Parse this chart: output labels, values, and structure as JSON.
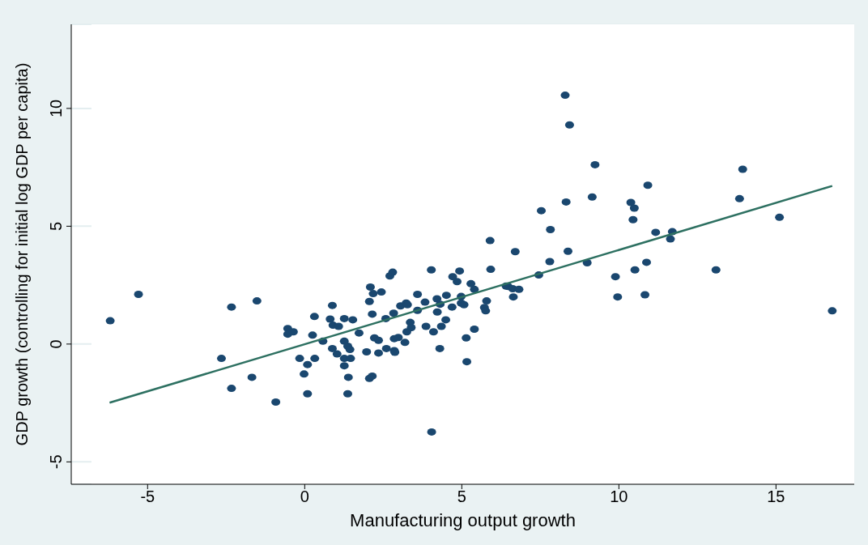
{
  "chart_data": {
    "type": "scatter",
    "xlabel": "Manufacturing output growth",
    "ylabel": "GDP growth (controlling for initial log GDP per capita)",
    "xlim": [
      -7.43,
      17.49
    ],
    "ylim": [
      -5.95,
      13.57
    ],
    "xticks": [
      -5,
      0,
      5,
      10,
      15
    ],
    "yticks": [
      -5,
      0,
      5,
      10
    ],
    "grid": "y",
    "legend": false,
    "series": [
      {
        "color": "#1a476f",
        "marker": "circle",
        "x": [
          -6.19,
          -5.29,
          -2.33,
          -1.52,
          -2.65,
          -2.33,
          -1.68,
          -0.92,
          -0.54,
          -0.54,
          -0.36,
          -0.16,
          -0.02,
          0.09,
          0.09,
          0.31,
          0.25,
          0.32,
          0.58,
          0.81,
          0.88,
          0.9,
          0.88,
          1.03,
          1.08,
          1.26,
          1.26,
          1.26,
          1.26,
          1.37,
          1.44,
          1.46,
          1.39,
          1.37,
          1.53,
          1.73,
          1.97,
          2.06,
          2.09,
          2.18,
          2.15,
          2.22,
          2.35,
          2.35,
          2.06,
          2.15,
          2.44,
          2.58,
          2.6,
          2.71,
          2.8,
          2.83,
          2.85,
          2.85,
          2.87,
          2.98,
          3.05,
          3.19,
          3.23,
          3.27,
          3.25,
          3.36,
          3.39,
          3.59,
          3.59,
          3.83,
          3.86,
          4.03,
          4.1,
          4.21,
          4.22,
          4.31,
          4.35,
          4.3,
          4.04,
          4.49,
          4.51,
          4.69,
          4.71,
          4.85,
          4.93,
          4.98,
          4.98,
          5.07,
          5.14,
          5.16,
          5.29,
          5.4,
          5.4,
          5.72,
          5.76,
          5.79,
          5.9,
          5.92,
          6.41,
          6.48,
          6.62,
          6.64,
          6.7,
          6.82,
          7.45,
          7.53,
          7.82,
          7.8,
          8.29,
          8.43,
          8.32,
          8.38,
          8.99,
          9.15,
          9.24,
          9.89,
          9.96,
          10.38,
          10.49,
          10.45,
          10.51,
          10.92,
          10.88,
          10.83,
          11.17,
          11.64,
          11.7,
          13.09,
          13.84,
          13.94,
          15.11,
          16.79
        ],
        "values": [
          0.99,
          2.11,
          1.57,
          1.83,
          -0.61,
          -1.88,
          -1.41,
          -2.46,
          0.66,
          0.42,
          0.52,
          -0.61,
          -1.27,
          -0.87,
          -2.11,
          1.17,
          0.38,
          -0.61,
          0.12,
          1.06,
          1.64,
          0.8,
          -0.19,
          -0.42,
          0.75,
          1.08,
          0.12,
          -0.61,
          -0.92,
          -0.09,
          -0.23,
          -0.61,
          -1.41,
          -2.11,
          1.03,
          0.47,
          -0.33,
          1.81,
          2.42,
          2.14,
          1.27,
          0.26,
          0.16,
          -0.38,
          -1.46,
          -1.36,
          2.21,
          1.08,
          -0.19,
          2.89,
          3.05,
          1.31,
          0.23,
          -0.28,
          -0.35,
          0.28,
          1.62,
          0.07,
          1.74,
          1.67,
          0.52,
          0.92,
          0.7,
          1.43,
          2.11,
          1.78,
          0.75,
          3.15,
          0.52,
          1.92,
          1.36,
          1.69,
          0.75,
          -0.19,
          -3.73,
          1.03,
          2.07,
          1.57,
          2.86,
          2.65,
          3.1,
          2.02,
          1.74,
          1.67,
          0.26,
          -0.75,
          2.56,
          2.32,
          0.63,
          1.55,
          1.41,
          1.83,
          4.39,
          3.17,
          2.46,
          2.44,
          2.35,
          2,
          3.92,
          2.32,
          2.93,
          5.66,
          4.86,
          3.5,
          10.56,
          9.3,
          6.03,
          3.94,
          3.45,
          6.24,
          7.61,
          2.86,
          2,
          6.01,
          5.77,
          5.28,
          3.15,
          6.74,
          3.47,
          2.09,
          4.74,
          4.46,
          4.77,
          3.15,
          6.17,
          7.42,
          5.38,
          1.41
        ]
      },
      {
        "type": "line",
        "color": "#2d7061",
        "x": [
          -6.21,
          16.79
        ],
        "values": [
          -2.49,
          6.71
        ]
      }
    ]
  }
}
